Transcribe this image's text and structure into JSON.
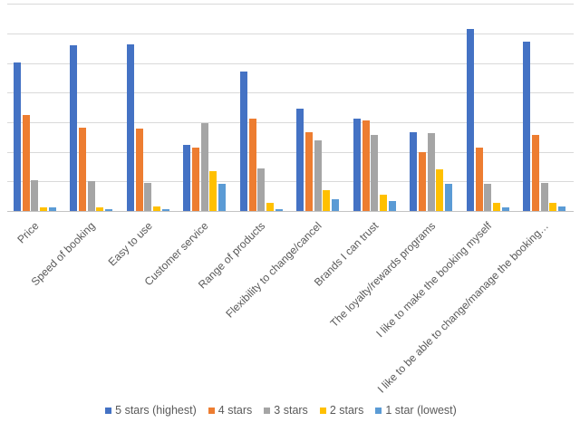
{
  "chart_data": {
    "type": "bar",
    "title": "",
    "xlabel": "",
    "ylabel": "",
    "y_axis_labels_visible": false,
    "ylim": [
      0,
      7
    ],
    "gridline_step": 1,
    "grid": true,
    "legend_position": "bottom",
    "categories": [
      "Price",
      "Speed of booking",
      "Easy to use",
      "Customer service",
      "Range of products",
      "Flexibility to change/cancel",
      "Brands I can trust",
      "The loyalty/rewards programs",
      "I like to make the booking myself",
      "I like to be able to change/manage the booking…"
    ],
    "series": [
      {
        "name": "5 stars (highest)",
        "color": "#4472c4",
        "values": [
          5.04,
          5.62,
          5.65,
          2.25,
          4.72,
          3.47,
          3.13,
          2.67,
          6.17,
          5.72
        ]
      },
      {
        "name": "4 stars",
        "color": "#ed7d31",
        "values": [
          3.25,
          2.83,
          2.79,
          2.15,
          3.14,
          2.67,
          3.08,
          1.99,
          2.16,
          2.57
        ]
      },
      {
        "name": "3 stars",
        "color": "#a5a5a5",
        "values": [
          1.07,
          1.01,
          0.97,
          2.99,
          1.44,
          2.39,
          2.59,
          2.64,
          0.92,
          0.95
        ]
      },
      {
        "name": "2 stars",
        "color": "#ffc000",
        "values": [
          0.15,
          0.14,
          0.17,
          1.35,
          0.28,
          0.71,
          0.56,
          1.43,
          0.28,
          0.28
        ]
      },
      {
        "name": "1 star (lowest)",
        "color": "#5b9bd5",
        "values": [
          0.13,
          0.08,
          0.07,
          0.93,
          0.09,
          0.4,
          0.36,
          0.93,
          0.13,
          0.17
        ]
      }
    ],
    "colors": {
      "gridline": "#d9d9d9",
      "axis_line": "#c3c3c3",
      "label_text": "#595959",
      "background": "#ffffff"
    }
  }
}
